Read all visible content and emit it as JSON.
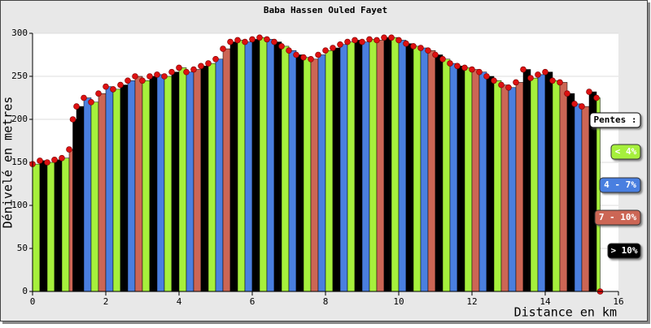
{
  "chart_data": {
    "type": "bar",
    "title": "Baba Hassen Ouled Fayet",
    "y_label": "Dénivelé en metres",
    "x_label": "Distance en km",
    "x": [
      0,
      0.2,
      0.4,
      0.6,
      0.8,
      1,
      1.1,
      1.2,
      1.4,
      1.6,
      1.8,
      2,
      2.2,
      2.4,
      2.6,
      2.8,
      3,
      3.2,
      3.4,
      3.6,
      3.8,
      4,
      4.2,
      4.4,
      4.6,
      4.8,
      5,
      5.2,
      5.4,
      5.6,
      5.8,
      6,
      6.2,
      6.4,
      6.6,
      6.8,
      7,
      7.2,
      7.4,
      7.6,
      7.8,
      8,
      8.2,
      8.4,
      8.6,
      8.8,
      9,
      9.2,
      9.4,
      9.6,
      9.8,
      10,
      10.2,
      10.4,
      10.6,
      10.8,
      11,
      11.2,
      11.4,
      11.6,
      11.8,
      12,
      12.2,
      12.4,
      12.6,
      12.8,
      13,
      13.2,
      13.4,
      13.6,
      13.8,
      14,
      14.2,
      14.4,
      14.6,
      14.8,
      15,
      15.2,
      15.4,
      15.5
    ],
    "values": [
      148,
      152,
      150,
      153,
      155,
      165,
      200,
      215,
      225,
      220,
      230,
      238,
      235,
      240,
      245,
      250,
      245,
      250,
      252,
      250,
      255,
      260,
      255,
      258,
      262,
      265,
      270,
      282,
      290,
      292,
      290,
      293,
      295,
      293,
      290,
      285,
      280,
      275,
      272,
      270,
      275,
      280,
      283,
      287,
      290,
      292,
      290,
      293,
      292,
      295,
      295,
      292,
      288,
      285,
      283,
      280,
      275,
      270,
      265,
      262,
      260,
      258,
      255,
      250,
      245,
      240,
      237,
      243,
      258,
      248,
      252,
      255,
      245,
      243,
      230,
      218,
      215,
      232,
      225,
      0
    ],
    "colors": [
      "#a6f03c",
      "#000000",
      "#a6f03c",
      "#000000",
      "#a6f03c",
      "#cc6655",
      "#000000",
      "#000000",
      "#4a7fe0",
      "#a6f03c",
      "#cc6655",
      "#4a7fe0",
      "#a6f03c",
      "#000000",
      "#4a7fe0",
      "#cc6655",
      "#a6f03c",
      "#000000",
      "#4a7fe0",
      "#a6f03c",
      "#000000",
      "#a6f03c",
      "#4a7fe0",
      "#cc6655",
      "#000000",
      "#a6f03c",
      "#4a7fe0",
      "#cc6655",
      "#000000",
      "#a6f03c",
      "#4a7fe0",
      "#000000",
      "#a6f03c",
      "#4a7fe0",
      "#000000",
      "#a6f03c",
      "#4a7fe0",
      "#000000",
      "#a6f03c",
      "#cc6655",
      "#4a7fe0",
      "#a6f03c",
      "#000000",
      "#4a7fe0",
      "#a6f03c",
      "#000000",
      "#4a7fe0",
      "#a6f03c",
      "#cc6655",
      "#000000",
      "#a6f03c",
      "#4a7fe0",
      "#000000",
      "#a6f03c",
      "#4a7fe0",
      "#cc6655",
      "#000000",
      "#a6f03c",
      "#4a7fe0",
      "#000000",
      "#a6f03c",
      "#cc6655",
      "#4a7fe0",
      "#000000",
      "#a6f03c",
      "#cc6655",
      "#4a7fe0",
      "#cc6655",
      "#000000",
      "#a6f03c",
      "#4a7fe0",
      "#000000",
      "#a6f03c",
      "#cc6655",
      "#000000",
      "#4a7fe0",
      "#cc6655",
      "#000000",
      "#a6f03c",
      "#000000"
    ],
    "marker_color": "#dd1111",
    "xlim": [
      0,
      16
    ],
    "xticks": [
      0,
      2,
      4,
      6,
      8,
      10,
      12,
      14,
      16
    ],
    "ylim": [
      0,
      300
    ],
    "yticks": [
      0,
      50,
      100,
      150,
      200,
      250,
      300
    ],
    "grid": true,
    "legend": {
      "title": "Pentes :",
      "items": [
        {
          "label": "< 4%",
          "color": "#a6f03c",
          "text_color": "#ffffff"
        },
        {
          "label": "4 - 7%",
          "color": "#4a7fe0",
          "text_color": "#ffffff"
        },
        {
          "label": "7 - 10%",
          "color": "#cc6655",
          "text_color": "#ffffff"
        },
        {
          "label": "> 10%",
          "color": "#000000",
          "text_color": "#ffffff"
        }
      ]
    }
  }
}
